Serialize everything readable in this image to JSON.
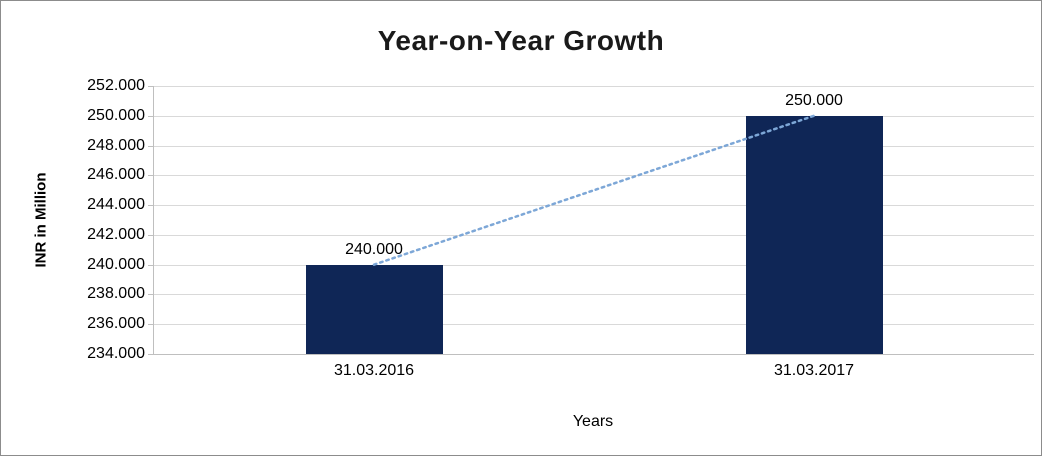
{
  "chart": {
    "title": "Year-on-Year Growth",
    "y_axis_title": "INR in Million",
    "x_axis_title": "Years",
    "colors": {
      "bar": "#0f2656",
      "trendline": "#7da7d7",
      "gridline": "#d9d9d9",
      "axis": "#bfbfbf",
      "border": "#8c8c8c",
      "text": "#000000",
      "title_text": "#1a1a1a"
    }
  },
  "chart_data": {
    "type": "bar",
    "title": "Year-on-Year Growth",
    "xlabel": "Years",
    "ylabel": "INR in Million",
    "categories": [
      "31.03.2016",
      "31.03.2017"
    ],
    "values": [
      240000,
      250000
    ],
    "value_labels": [
      "240.000",
      "250.000"
    ],
    "y_ticks": [
      "252.000",
      "250.000",
      "248.000",
      "246.000",
      "244.000",
      "242.000",
      "240.000",
      "238.000",
      "236.000",
      "234.000"
    ],
    "ylim": [
      234000,
      252000
    ],
    "y_tick_step": 2000,
    "grid": true,
    "legend": false,
    "trendline_between_bar_tops": true
  }
}
